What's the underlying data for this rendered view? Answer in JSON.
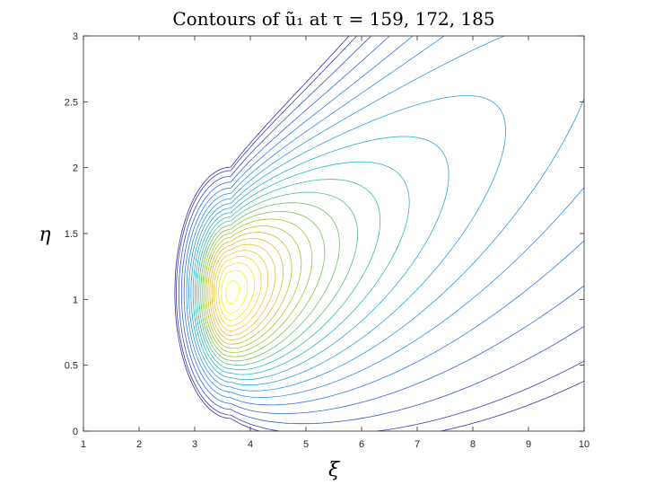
{
  "chart_data": {
    "type": "contour",
    "title": "Contours of ũ₁ at τ = 159, 172, 185",
    "xlabel": "ξ",
    "ylabel": "η",
    "xlim": [
      1,
      10
    ],
    "ylim": [
      0,
      3
    ],
    "xticks": [
      "1",
      "2",
      "3",
      "4",
      "5",
      "6",
      "7",
      "8",
      "9",
      "10"
    ],
    "yticks": [
      "0",
      "0.5",
      "1",
      "1.5",
      "2",
      "2.5",
      "3"
    ],
    "grid": false,
    "colormap": "parula",
    "peak": {
      "x": 3.65,
      "y": 1.05
    },
    "contour_levels": 24,
    "colors": {
      "axis": "#262626",
      "low": "#3e26a8",
      "high": "#f9fb0e"
    }
  }
}
